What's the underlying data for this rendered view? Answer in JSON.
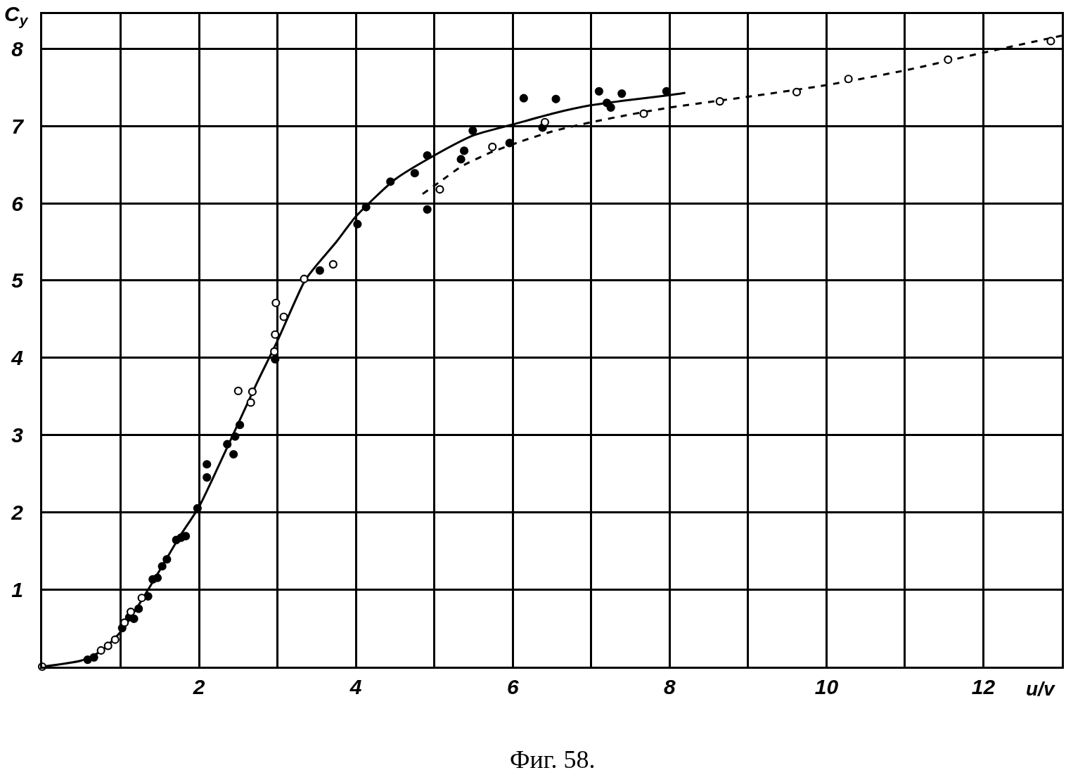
{
  "chart_data": {
    "type": "scatter",
    "xlabel": "u/v",
    "ylabel": "C$_{y}$",
    "annotations": [
      "Фиг. 58."
    ],
    "xlim": [
      0,
      13
    ],
    "ylim": [
      0,
      8.45
    ],
    "xticks": [
      {
        "value": 1,
        "label": null
      },
      2,
      {
        "value": 3,
        "label": null
      },
      4,
      {
        "value": 5,
        "label": null
      },
      6,
      {
        "value": 7,
        "label": null
      },
      8,
      {
        "value": 9,
        "label": null
      },
      10,
      {
        "value": 11,
        "label": null
      },
      12
    ],
    "yticks": [
      1,
      2,
      3,
      4,
      5,
      6,
      7,
      8
    ],
    "grid": true,
    "series": [
      {
        "type": "line",
        "color": "#000000",
        "marker": "none",
        "line_style": "solid",
        "x": [
          0,
          0.5,
          0.75,
          1,
          1.25,
          1.5,
          1.75,
          2,
          2.25,
          2.5,
          2.75,
          3,
          3.35,
          3.5,
          3.75,
          4,
          4.5,
          5,
          5.5,
          6,
          6.5,
          7,
          7.5,
          8,
          8.2
        ],
        "values": [
          0,
          0.08,
          0.2,
          0.45,
          0.83,
          1.25,
          1.68,
          2.07,
          2.6,
          3.15,
          3.7,
          4.22,
          5.0,
          5.2,
          5.5,
          5.83,
          6.31,
          6.62,
          6.88,
          7.02,
          7.16,
          7.27,
          7.34,
          7.4,
          7.43
        ]
      },
      {
        "type": "line",
        "color": "#000000",
        "marker": "none",
        "line_style": "dashed",
        "x": [
          4.85,
          5.1,
          5.35,
          5.7,
          6.1,
          6.5,
          7,
          7.5,
          8,
          9,
          10,
          11,
          12,
          13
        ],
        "values": [
          6.12,
          6.3,
          6.48,
          6.65,
          6.8,
          6.93,
          7.05,
          7.15,
          7.24,
          7.38,
          7.53,
          7.72,
          7.95,
          8.17
        ]
      },
      {
        "color": "#000000",
        "marker": "circle",
        "x": [
          0.58,
          0.66,
          1.02,
          1.11,
          1.17,
          1.23,
          1.35,
          1.41,
          1.47,
          1.53,
          1.59,
          1.71,
          1.77,
          1.83,
          1.98,
          2.1,
          2.1,
          2.36,
          2.44,
          2.46,
          2.52,
          2.97,
          3.54,
          4.02,
          4.13,
          4.44,
          4.75,
          4.91,
          4.91,
          5.34,
          5.38,
          5.49,
          5.96,
          6.14,
          6.38,
          6.55,
          7.1,
          7.2,
          7.25,
          7.39,
          7.96
        ],
        "values": [
          0.09,
          0.12,
          0.5,
          0.64,
          0.62,
          0.75,
          0.91,
          1.13,
          1.15,
          1.3,
          1.39,
          1.64,
          1.67,
          1.69,
          2.05,
          2.45,
          2.62,
          2.88,
          2.75,
          2.98,
          3.13,
          3.98,
          5.13,
          5.73,
          5.95,
          6.28,
          6.39,
          6.62,
          5.92,
          6.57,
          6.68,
          6.94,
          6.78,
          7.36,
          6.98,
          7.35,
          7.45,
          7.3,
          7.24,
          7.42,
          7.45
        ]
      },
      {
        "color": "#ffffff",
        "marker": "circle",
        "x": [
          0,
          0.75,
          0.84,
          0.93,
          1.05,
          1.13,
          1.27,
          2.5,
          2.66,
          2.68,
          2.96,
          2.97,
          2.98,
          3.08,
          3.34,
          3.71,
          5.07,
          5.74,
          6.41,
          7.67,
          8.64,
          9.62,
          10.28,
          11.55,
          12.86
        ],
        "values": [
          0,
          0.21,
          0.27,
          0.35,
          0.57,
          0.71,
          0.89,
          3.57,
          3.42,
          3.56,
          4.08,
          4.3,
          4.71,
          4.53,
          5.02,
          5.21,
          6.18,
          6.73,
          7.05,
          7.16,
          7.32,
          7.44,
          7.61,
          7.86,
          8.1
        ]
      }
    ]
  }
}
